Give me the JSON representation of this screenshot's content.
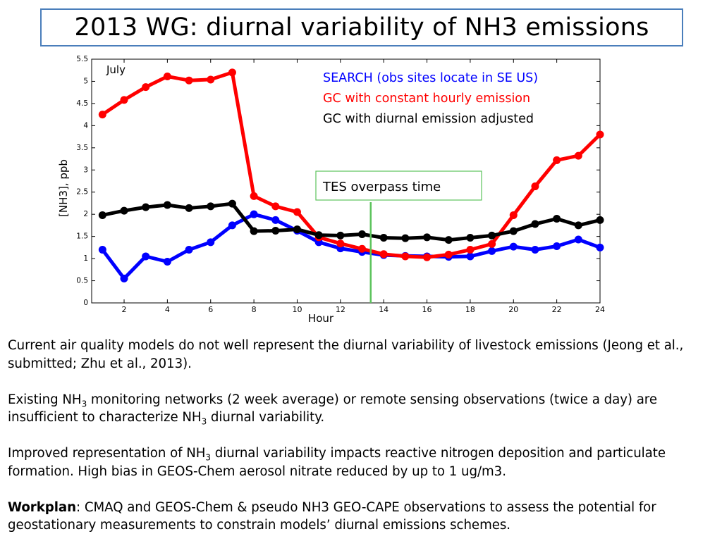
{
  "slide": {
    "title": "2013 WG: diurnal variability of NH3 emissions",
    "paragraphs": {
      "p1": "Current air quality models do not well represent the diurnal variability of livestock emissions (Jeong et al., submitted; Zhu et al., 2013).",
      "p2_a": "Existing NH",
      "p2_sub1": "3",
      "p2_b": " monitoring networks (2 week average) or remote sensing observations (twice a day) are insufficient to characterize NH",
      "p2_sub2": "3",
      "p2_c": " diurnal variability.",
      "p3_a": "Improved representation of NH",
      "p3_sub": "3",
      "p3_b": " diurnal variability impacts reactive nitrogen deposition and particulate formation.  High bias in GEOS-Chem aerosol nitrate reduced by up to 1 ug/m3.",
      "p4_bold": "Workplan",
      "p4_rest": ": CMAQ and GEOS-Chem & pseudo NH3 GEO-CAPE observations to assess the potential for geostationary measurements to constrain models’ diurnal emissions schemes."
    }
  },
  "chart_data": {
    "type": "line",
    "xlabel": "Hour",
    "ylabel": "[NH3], ppb",
    "annotation_month": "July",
    "xlim": [
      0.5,
      24
    ],
    "ylim": [
      0,
      5.5
    ],
    "xticks": [
      2,
      4,
      6,
      8,
      10,
      12,
      14,
      16,
      18,
      20,
      22,
      24
    ],
    "yticks": [
      0,
      0.5,
      1,
      1.5,
      2,
      2.5,
      3,
      3.5,
      4,
      4.5,
      5,
      5.5
    ],
    "x": [
      1,
      2,
      3,
      4,
      5,
      6,
      7,
      8,
      9,
      10,
      11,
      12,
      13,
      14,
      15,
      16,
      17,
      18,
      19,
      20,
      21,
      22,
      23,
      24
    ],
    "series": [
      {
        "name": "SEARCH (obs sites locate in SE US)",
        "color": "#0000ff",
        "values": [
          1.2,
          0.55,
          1.05,
          0.93,
          1.2,
          1.37,
          1.75,
          2.0,
          1.87,
          1.63,
          1.37,
          1.23,
          1.15,
          1.08,
          1.06,
          1.05,
          1.04,
          1.05,
          1.17,
          1.27,
          1.2,
          1.28,
          1.43,
          1.25
        ]
      },
      {
        "name": "GC with constant hourly emission",
        "color": "#ff0000",
        "values": [
          4.25,
          4.58,
          4.87,
          5.11,
          5.02,
          5.04,
          5.2,
          2.41,
          2.18,
          2.05,
          1.48,
          1.34,
          1.22,
          1.1,
          1.05,
          1.03,
          1.09,
          1.2,
          1.33,
          1.98,
          2.63,
          3.22,
          3.32,
          3.8
        ]
      },
      {
        "name": "GC with diurnal emission adjusted",
        "color": "#000000",
        "values": [
          1.98,
          2.08,
          2.16,
          2.21,
          2.14,
          2.18,
          2.24,
          1.62,
          1.63,
          1.66,
          1.53,
          1.52,
          1.55,
          1.47,
          1.46,
          1.48,
          1.42,
          1.47,
          1.52,
          1.62,
          1.78,
          1.9,
          1.75,
          1.87
        ]
      }
    ],
    "overpass": {
      "label": "TES overpass time",
      "hour": 13.4,
      "color": "#5cc35c"
    }
  }
}
